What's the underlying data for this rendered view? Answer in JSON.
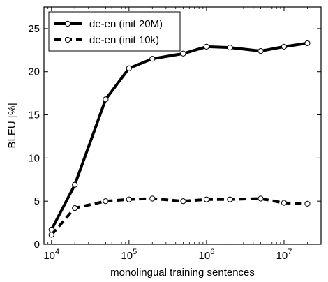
{
  "chart_data": {
    "type": "line",
    "title": "",
    "xlabel": "monolingual training sentences",
    "ylabel": "BLEU [%]",
    "xscale": "log",
    "xlim": [
      8000,
      30000000
    ],
    "ylim": [
      0,
      27.5
    ],
    "grid": false,
    "legend_position": "top-left",
    "x_ticks": [
      {
        "value": 10000,
        "mantissa": "10",
        "exponent": "4"
      },
      {
        "value": 100000,
        "mantissa": "10",
        "exponent": "5"
      },
      {
        "value": 1000000,
        "mantissa": "10",
        "exponent": "6"
      },
      {
        "value": 10000000,
        "mantissa": "10",
        "exponent": "7"
      }
    ],
    "y_ticks": [
      {
        "value": 0,
        "label": "0"
      },
      {
        "value": 5,
        "label": "5"
      },
      {
        "value": 10,
        "label": "10"
      },
      {
        "value": 15,
        "label": "15"
      },
      {
        "value": 20,
        "label": "20"
      },
      {
        "value": 25,
        "label": "25"
      }
    ],
    "series": [
      {
        "name": "de-en (init 20M)",
        "line_style": "solid",
        "color": "#000000",
        "x": [
          10000,
          20000,
          50000,
          100000,
          200000,
          500000,
          1000000,
          2000000,
          5000000,
          10000000,
          20000000
        ],
        "y": [
          1.7,
          6.9,
          16.8,
          20.4,
          21.5,
          22.1,
          22.9,
          22.8,
          22.4,
          22.9,
          23.3
        ]
      },
      {
        "name": "de-en (init 10k)",
        "line_style": "dashed",
        "color": "#000000",
        "x": [
          10000,
          20000,
          50000,
          100000,
          200000,
          500000,
          1000000,
          2000000,
          5000000,
          10000000,
          20000000
        ],
        "y": [
          1.1,
          4.2,
          5.0,
          5.2,
          5.3,
          5.0,
          5.2,
          5.2,
          5.3,
          4.8,
          4.7
        ]
      }
    ]
  }
}
